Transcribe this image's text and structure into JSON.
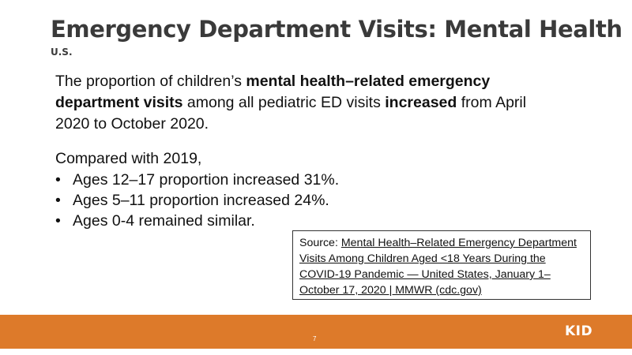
{
  "slide": {
    "title": "Emergency Department Visits: Mental Health",
    "subtitle": "U.S.",
    "paragraph": {
      "t1": "The proportion of children’s ",
      "b1": "mental health–related emergency department visits",
      "t2": " among all pediatric ED visits ",
      "b2": "increased",
      "t3": " from April 2020 to October 2020."
    },
    "compare_intro": "Compared with 2019,",
    "bullets": [
      "Ages 12–17 proportion increased 31%.",
      "Ages 5–11 proportion increased 24%.",
      "Ages 0-4 remained similar."
    ],
    "bullet_glyph": "•",
    "source": {
      "prefix": "Source: ",
      "link_text": "Mental Health–Related Emergency Department Visits Among Children Aged <18 Years During the COVID-19 Pandemic — United States, January 1–October 17, 2020 | MMWR (cdc.gov)"
    },
    "page_number": "7",
    "logo_text": "KID"
  },
  "colors": {
    "footer": "#dd7a2a",
    "title": "#3a3a3a"
  }
}
